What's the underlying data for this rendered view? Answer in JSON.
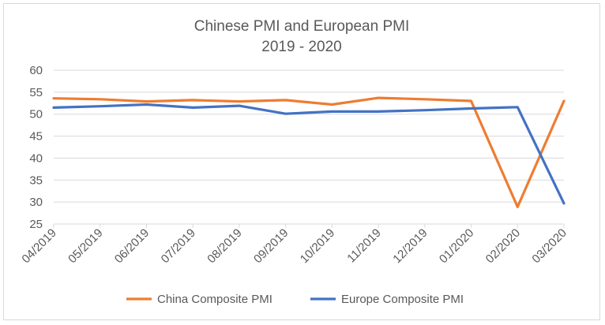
{
  "chart_data": {
    "type": "line",
    "title": "Chinese PMI and European PMI",
    "subtitle": "2019 - 2020",
    "categories": [
      "04/2019",
      "05/2019",
      "06/2019",
      "07/2019",
      "08/2019",
      "09/2019",
      "10/2019",
      "11/2019",
      "12/2019",
      "01/2020",
      "02/2020",
      "03/2020"
    ],
    "series": [
      {
        "name": "China Composite PMI",
        "color": "#ED7D31",
        "values": [
          53.6,
          53.4,
          52.9,
          53.2,
          52.9,
          53.2,
          52.2,
          53.7,
          53.4,
          53.0,
          28.9,
          53.0
        ]
      },
      {
        "name": "Europe Composite PMI",
        "color": "#4472C4",
        "values": [
          51.5,
          51.8,
          52.2,
          51.5,
          51.9,
          50.1,
          50.6,
          50.6,
          50.9,
          51.3,
          51.6,
          29.7
        ]
      }
    ],
    "yticks": [
      "25",
      "30",
      "35",
      "40",
      "45",
      "50",
      "55",
      "60"
    ],
    "ylim": [
      25,
      60
    ],
    "grid": true,
    "legend_position": "bottom"
  }
}
